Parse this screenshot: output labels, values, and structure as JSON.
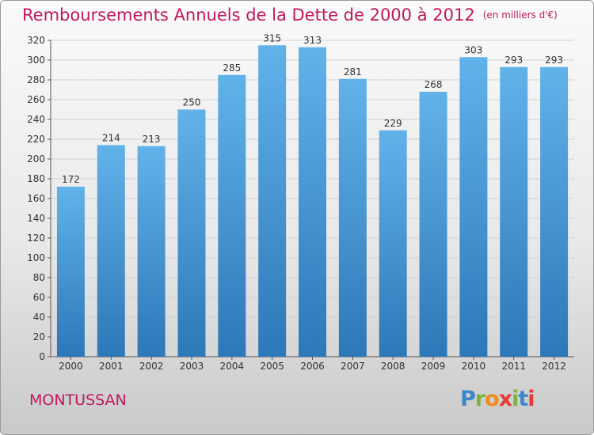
{
  "page": {
    "commune": "MONTUSSAN",
    "brand": {
      "text": "Proxiti",
      "letters": [
        "P",
        "r",
        "o",
        "x",
        "i",
        "t",
        "i"
      ],
      "letter_colors": [
        "#3a88c8",
        "#7cb342",
        "#f08a1c",
        "#e53935",
        "#7cb342",
        "#3a88c8",
        "#e53935"
      ]
    }
  },
  "colors": {
    "title": "#c0185d",
    "bar_top": "#62b2ea",
    "bar_bottom": "#2d78b8",
    "grid": "#d2d2d2",
    "axis_text": "#333333"
  },
  "chart_data": {
    "type": "bar",
    "title": "Remboursements Annuels de la Dette de 2000 à 2012",
    "unit": "(en milliers d'€)",
    "xlabel": "",
    "ylabel": "",
    "categories": [
      "2000",
      "2001",
      "2002",
      "2003",
      "2004",
      "2005",
      "2006",
      "2007",
      "2008",
      "2009",
      "2010",
      "2011",
      "2012"
    ],
    "values": [
      172,
      214,
      213,
      250,
      285,
      315,
      313,
      281,
      229,
      268,
      303,
      293,
      293
    ],
    "ylim": [
      0,
      320
    ],
    "yticks": [
      0,
      20,
      40,
      60,
      80,
      100,
      120,
      140,
      160,
      180,
      200,
      220,
      240,
      260,
      280,
      300,
      320
    ],
    "grid": true,
    "data_labels": true,
    "legend": "none"
  }
}
